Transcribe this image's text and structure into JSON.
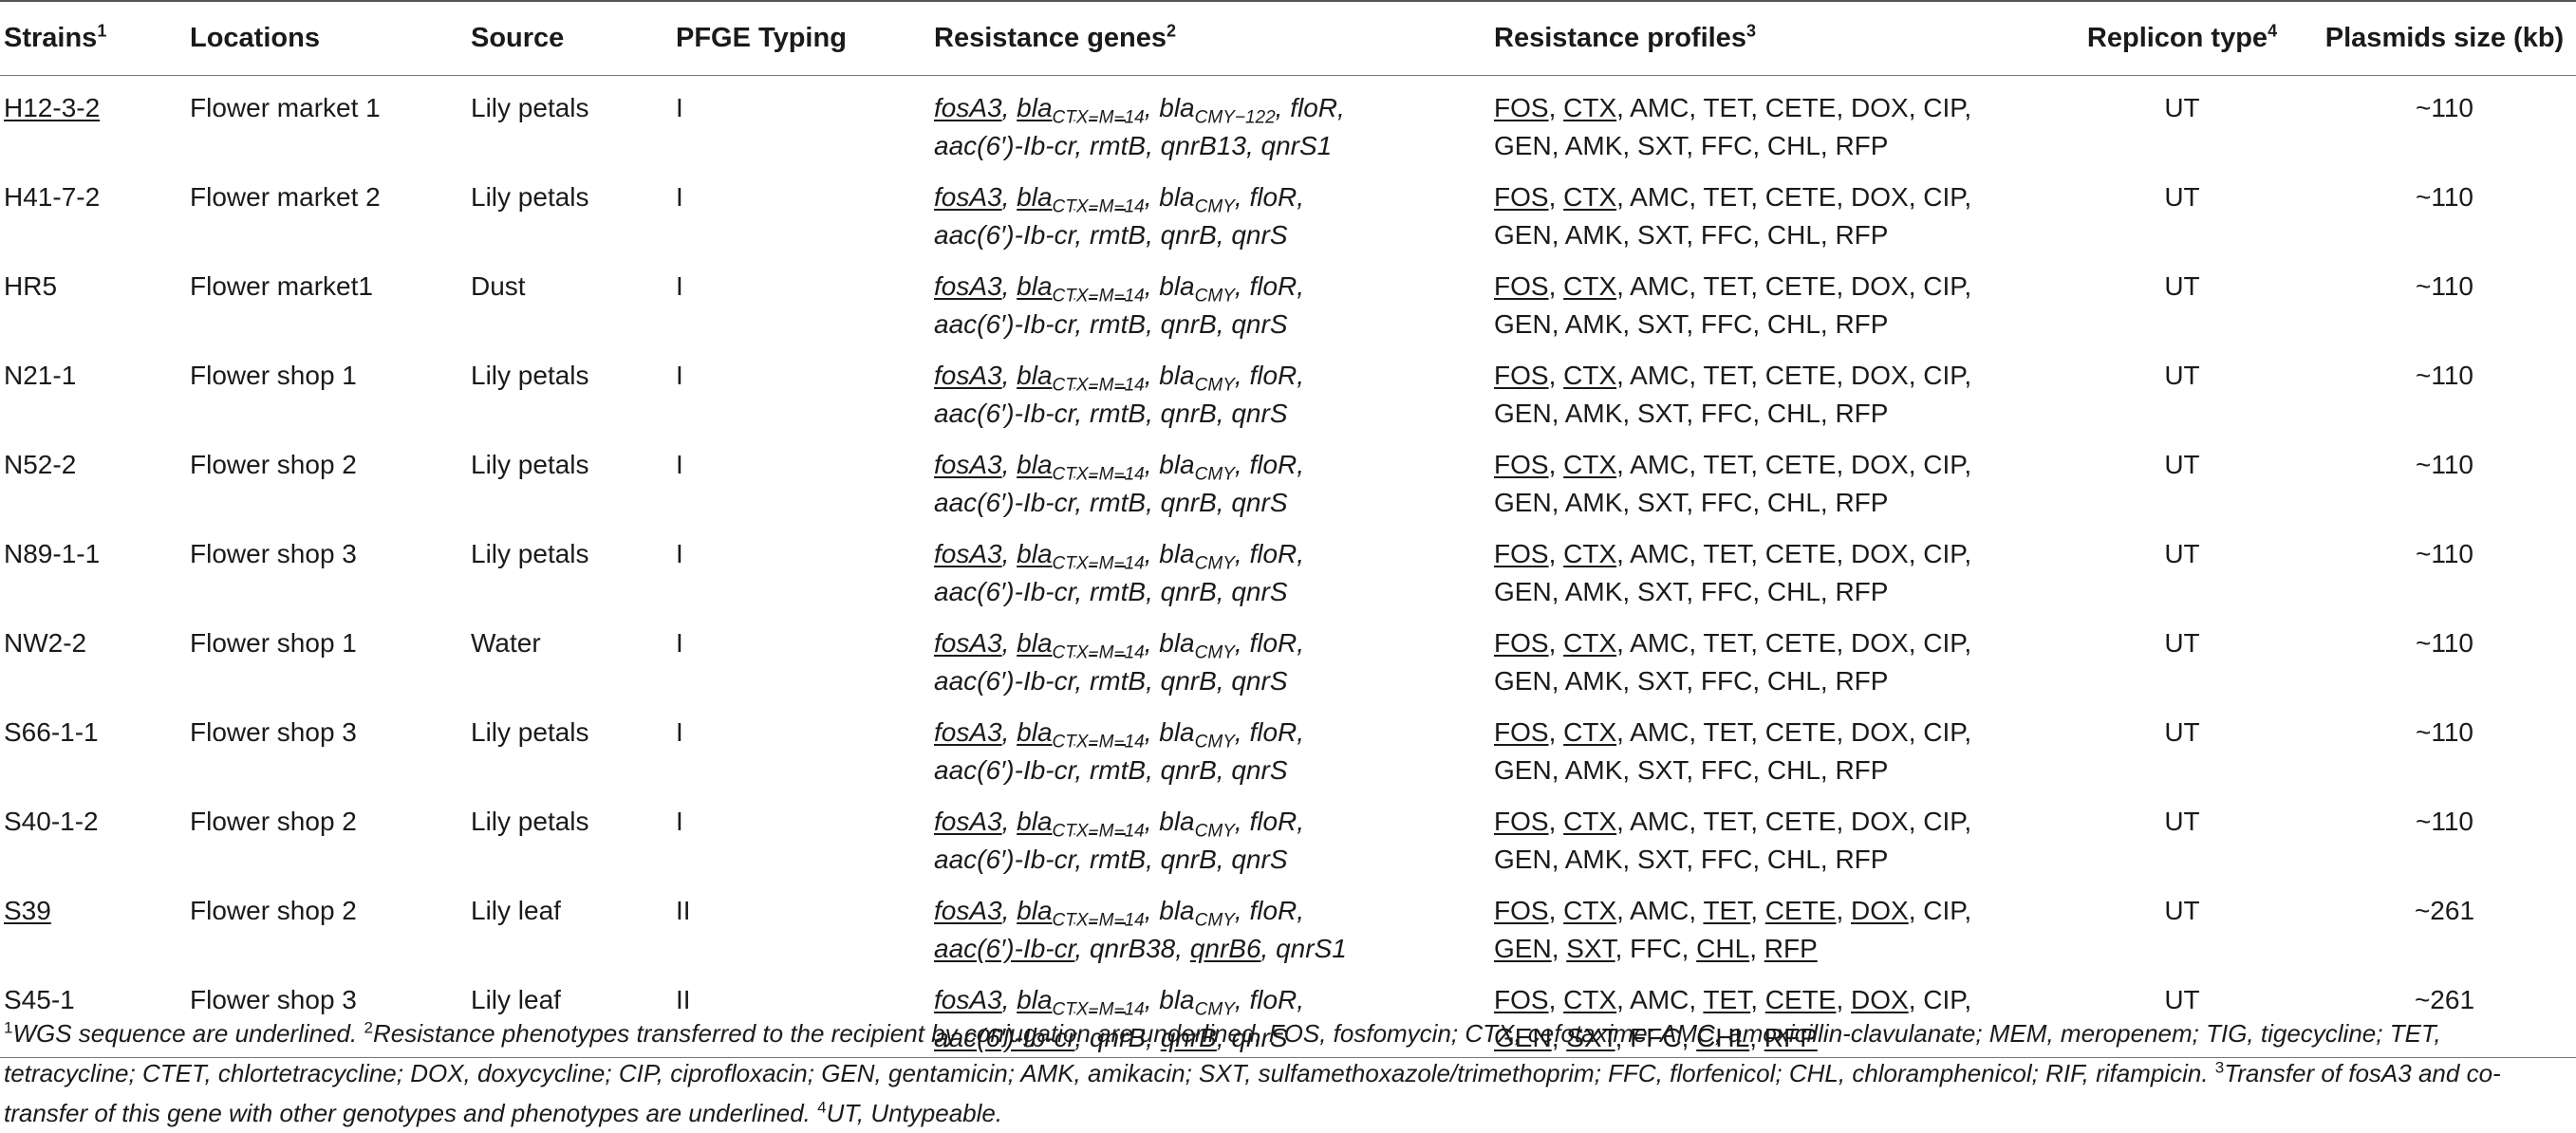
{
  "headers": [
    {
      "label": "Strains",
      "sup": "1"
    },
    {
      "label": "Locations",
      "sup": ""
    },
    {
      "label": "Source",
      "sup": ""
    },
    {
      "label": "PFGE Typing",
      "sup": ""
    },
    {
      "label": "Resistance genes",
      "sup": "2"
    },
    {
      "label": "Resistance profiles",
      "sup": "3"
    },
    {
      "label": "Replicon type",
      "sup": "4"
    },
    {
      "label": "Plasmids size (kb)",
      "sup": ""
    }
  ],
  "rows": [
    {
      "strain": "H12-3-2",
      "strain_u": true,
      "location": "Flower market 1",
      "source": "Lily petals",
      "pfge": "I",
      "genes": [
        [
          [
            "fosA3",
            1,
            ""
          ]
        ],
        [
          [
            "bla",
            1,
            "CTX−M−14"
          ]
        ],
        [
          [
            "bla",
            0,
            "CMY−122"
          ]
        ],
        [
          [
            "floR",
            0,
            ""
          ]
        ],
        [
          [
            "aac(6′)-Ib-cr",
            0,
            ""
          ]
        ],
        [
          [
            "rmtB",
            0,
            ""
          ]
        ],
        [
          [
            "qnrB13",
            0,
            ""
          ]
        ],
        [
          [
            "qnrS1",
            0,
            ""
          ]
        ]
      ],
      "profile": [
        [
          "FOS",
          1
        ],
        [
          "CTX",
          1
        ],
        [
          "AMC",
          0
        ],
        [
          "TET",
          0
        ],
        [
          "CETE",
          0
        ],
        [
          "DOX",
          0
        ],
        [
          "CIP",
          0
        ],
        [
          "GEN",
          0
        ],
        [
          "AMK",
          0
        ],
        [
          "SXT",
          0
        ],
        [
          "FFC",
          0
        ],
        [
          "CHL",
          0
        ],
        [
          "RFP",
          0
        ]
      ],
      "replicon": "UT",
      "size": "~110"
    },
    {
      "strain": "H41-7-2",
      "strain_u": false,
      "location": "Flower market 2",
      "source": "Lily petals",
      "pfge": "I",
      "genes": [
        [
          [
            "fosA3",
            1,
            ""
          ]
        ],
        [
          [
            "bla",
            1,
            "CTX−M−14"
          ]
        ],
        [
          [
            "bla",
            0,
            "CMY"
          ]
        ],
        [
          [
            "floR",
            0,
            ""
          ]
        ],
        [
          [
            "aac(6′)-Ib-cr",
            0,
            ""
          ]
        ],
        [
          [
            "rmtB",
            0,
            ""
          ]
        ],
        [
          [
            "qnrB",
            0,
            ""
          ]
        ],
        [
          [
            "qnrS",
            0,
            ""
          ]
        ]
      ],
      "profile": [
        [
          "FOS",
          1
        ],
        [
          "CTX",
          1
        ],
        [
          "AMC",
          0
        ],
        [
          "TET",
          0
        ],
        [
          "CETE",
          0
        ],
        [
          "DOX",
          0
        ],
        [
          "CIP",
          0
        ],
        [
          "GEN",
          0
        ],
        [
          "AMK",
          0
        ],
        [
          "SXT",
          0
        ],
        [
          "FFC",
          0
        ],
        [
          "CHL",
          0
        ],
        [
          "RFP",
          0
        ]
      ],
      "replicon": "UT",
      "size": "~110"
    },
    {
      "strain": "HR5",
      "strain_u": false,
      "location": "Flower market1",
      "source": "Dust",
      "pfge": "I",
      "genes": [
        [
          [
            "fosA3",
            1,
            ""
          ]
        ],
        [
          [
            "bla",
            1,
            "CTX−M−14"
          ]
        ],
        [
          [
            "bla",
            0,
            "CMY"
          ]
        ],
        [
          [
            "floR",
            0,
            ""
          ]
        ],
        [
          [
            "aac(6′)-Ib-cr",
            0,
            ""
          ]
        ],
        [
          [
            "rmtB",
            0,
            ""
          ]
        ],
        [
          [
            "qnrB",
            0,
            ""
          ]
        ],
        [
          [
            "qnrS",
            0,
            ""
          ]
        ]
      ],
      "profile": [
        [
          "FOS",
          1
        ],
        [
          "CTX",
          1
        ],
        [
          "AMC",
          0
        ],
        [
          "TET",
          0
        ],
        [
          "CETE",
          0
        ],
        [
          "DOX",
          0
        ],
        [
          "CIP",
          0
        ],
        [
          "GEN",
          0
        ],
        [
          "AMK",
          0
        ],
        [
          "SXT",
          0
        ],
        [
          "FFC",
          0
        ],
        [
          "CHL",
          0
        ],
        [
          "RFP",
          0
        ]
      ],
      "replicon": "UT",
      "size": "~110"
    },
    {
      "strain": "N21-1",
      "strain_u": false,
      "location": "Flower shop 1",
      "source": "Lily petals",
      "pfge": "I",
      "genes": [
        [
          [
            "fosA3",
            1,
            ""
          ]
        ],
        [
          [
            "bla",
            1,
            "CTX−M−14"
          ]
        ],
        [
          [
            "bla",
            0,
            "CMY"
          ]
        ],
        [
          [
            "floR",
            0,
            ""
          ]
        ],
        [
          [
            "aac(6′)-Ib-cr",
            0,
            ""
          ]
        ],
        [
          [
            "rmtB",
            0,
            ""
          ]
        ],
        [
          [
            "qnrB",
            0,
            ""
          ]
        ],
        [
          [
            "qnrS",
            0,
            ""
          ]
        ]
      ],
      "profile": [
        [
          "FOS",
          1
        ],
        [
          "CTX",
          1
        ],
        [
          "AMC",
          0
        ],
        [
          "TET",
          0
        ],
        [
          "CETE",
          0
        ],
        [
          "DOX",
          0
        ],
        [
          "CIP",
          0
        ],
        [
          "GEN",
          0
        ],
        [
          "AMK",
          0
        ],
        [
          "SXT",
          0
        ],
        [
          "FFC",
          0
        ],
        [
          "CHL",
          0
        ],
        [
          "RFP",
          0
        ]
      ],
      "replicon": "UT",
      "size": "~110"
    },
    {
      "strain": "N52-2",
      "strain_u": false,
      "location": "Flower shop 2",
      "source": "Lily petals",
      "pfge": "I",
      "genes": [
        [
          [
            "fosA3",
            1,
            ""
          ]
        ],
        [
          [
            "bla",
            1,
            "CTX−M−14"
          ]
        ],
        [
          [
            "bla",
            0,
            "CMY"
          ]
        ],
        [
          [
            "floR",
            0,
            ""
          ]
        ],
        [
          [
            "aac(6′)-Ib-cr",
            0,
            ""
          ]
        ],
        [
          [
            "rmtB",
            0,
            ""
          ]
        ],
        [
          [
            "qnrB",
            0,
            ""
          ]
        ],
        [
          [
            "qnrS",
            0,
            ""
          ]
        ]
      ],
      "profile": [
        [
          "FOS",
          1
        ],
        [
          "CTX",
          1
        ],
        [
          "AMC",
          0
        ],
        [
          "TET",
          0
        ],
        [
          "CETE",
          0
        ],
        [
          "DOX",
          0
        ],
        [
          "CIP",
          0
        ],
        [
          "GEN",
          0
        ],
        [
          "AMK",
          0
        ],
        [
          "SXT",
          0
        ],
        [
          "FFC",
          0
        ],
        [
          "CHL",
          0
        ],
        [
          "RFP",
          0
        ]
      ],
      "replicon": "UT",
      "size": "~110"
    },
    {
      "strain": "N89-1-1",
      "strain_u": false,
      "location": "Flower shop 3",
      "source": "Lily petals",
      "pfge": "I",
      "genes": [
        [
          [
            "fosA3",
            1,
            ""
          ]
        ],
        [
          [
            "bla",
            1,
            "CTX−M−14"
          ]
        ],
        [
          [
            "bla",
            0,
            "CMY"
          ]
        ],
        [
          [
            "floR",
            0,
            ""
          ]
        ],
        [
          [
            "aac(6′)-Ib-cr",
            0,
            ""
          ]
        ],
        [
          [
            "rmtB",
            0,
            ""
          ]
        ],
        [
          [
            "qnrB",
            0,
            ""
          ]
        ],
        [
          [
            "qnrS",
            0,
            ""
          ]
        ]
      ],
      "profile": [
        [
          "FOS",
          1
        ],
        [
          "CTX",
          1
        ],
        [
          "AMC",
          0
        ],
        [
          "TET",
          0
        ],
        [
          "CETE",
          0
        ],
        [
          "DOX",
          0
        ],
        [
          "CIP",
          0
        ],
        [
          "GEN",
          0
        ],
        [
          "AMK",
          0
        ],
        [
          "SXT",
          0
        ],
        [
          "FFC",
          0
        ],
        [
          "CHL",
          0
        ],
        [
          "RFP",
          0
        ]
      ],
      "replicon": "UT",
      "size": "~110"
    },
    {
      "strain": "NW2-2",
      "strain_u": false,
      "location": "Flower shop 1",
      "source": "Water",
      "pfge": "I",
      "genes": [
        [
          [
            "fosA3",
            1,
            ""
          ]
        ],
        [
          [
            "bla",
            1,
            "CTX−M−14"
          ]
        ],
        [
          [
            "bla",
            0,
            "CMY"
          ]
        ],
        [
          [
            "floR",
            0,
            ""
          ]
        ],
        [
          [
            "aac(6′)-Ib-cr",
            0,
            ""
          ]
        ],
        [
          [
            "rmtB",
            0,
            ""
          ]
        ],
        [
          [
            "qnrB",
            0,
            ""
          ]
        ],
        [
          [
            "qnrS",
            0,
            ""
          ]
        ]
      ],
      "profile": [
        [
          "FOS",
          1
        ],
        [
          "CTX",
          1
        ],
        [
          "AMC",
          0
        ],
        [
          "TET",
          0
        ],
        [
          "CETE",
          0
        ],
        [
          "DOX",
          0
        ],
        [
          "CIP",
          0
        ],
        [
          "GEN",
          0
        ],
        [
          "AMK",
          0
        ],
        [
          "SXT",
          0
        ],
        [
          "FFC",
          0
        ],
        [
          "CHL",
          0
        ],
        [
          "RFP",
          0
        ]
      ],
      "replicon": "UT",
      "size": "~110"
    },
    {
      "strain": "S66-1-1",
      "strain_u": false,
      "location": "Flower shop 3",
      "source": "Lily petals",
      "pfge": "I",
      "genes": [
        [
          [
            "fosA3",
            1,
            ""
          ]
        ],
        [
          [
            "bla",
            1,
            "CTX−M−14"
          ]
        ],
        [
          [
            "bla",
            0,
            "CMY"
          ]
        ],
        [
          [
            "floR",
            0,
            ""
          ]
        ],
        [
          [
            "aac(6′)-Ib-cr",
            0,
            ""
          ]
        ],
        [
          [
            "rmtB",
            0,
            ""
          ]
        ],
        [
          [
            "qnrB",
            0,
            ""
          ]
        ],
        [
          [
            "qnrS",
            0,
            ""
          ]
        ]
      ],
      "profile": [
        [
          "FOS",
          1
        ],
        [
          "CTX",
          1
        ],
        [
          "AMC",
          0
        ],
        [
          "TET",
          0
        ],
        [
          "CETE",
          0
        ],
        [
          "DOX",
          0
        ],
        [
          "CIP",
          0
        ],
        [
          "GEN",
          0
        ],
        [
          "AMK",
          0
        ],
        [
          "SXT",
          0
        ],
        [
          "FFC",
          0
        ],
        [
          "CHL",
          0
        ],
        [
          "RFP",
          0
        ]
      ],
      "replicon": "UT",
      "size": "~110"
    },
    {
      "strain": "S40-1-2",
      "strain_u": false,
      "location": "Flower shop 2",
      "source": "Lily petals",
      "pfge": "I",
      "genes": [
        [
          [
            "fosA3",
            1,
            ""
          ]
        ],
        [
          [
            "bla",
            1,
            "CTX−M−14"
          ]
        ],
        [
          [
            "bla",
            0,
            "CMY"
          ]
        ],
        [
          [
            "floR",
            0,
            ""
          ]
        ],
        [
          [
            "aac(6′)-Ib-cr",
            0,
            ""
          ]
        ],
        [
          [
            "rmtB",
            0,
            ""
          ]
        ],
        [
          [
            "qnrB",
            0,
            ""
          ]
        ],
        [
          [
            "qnrS",
            0,
            ""
          ]
        ]
      ],
      "profile": [
        [
          "FOS",
          1
        ],
        [
          "CTX",
          1
        ],
        [
          "AMC",
          0
        ],
        [
          "TET",
          0
        ],
        [
          "CETE",
          0
        ],
        [
          "DOX",
          0
        ],
        [
          "CIP",
          0
        ],
        [
          "GEN",
          0
        ],
        [
          "AMK",
          0
        ],
        [
          "SXT",
          0
        ],
        [
          "FFC",
          0
        ],
        [
          "CHL",
          0
        ],
        [
          "RFP",
          0
        ]
      ],
      "replicon": "UT",
      "size": "~110"
    },
    {
      "strain": "S39",
      "strain_u": true,
      "location": "Flower shop 2",
      "source": "Lily leaf",
      "pfge": "II",
      "genes": [
        [
          [
            "fosA3",
            1,
            ""
          ]
        ],
        [
          [
            "bla",
            1,
            "CTX−M−14"
          ]
        ],
        [
          [
            "bla",
            0,
            "CMY"
          ]
        ],
        [
          [
            "floR",
            0,
            ""
          ]
        ],
        [
          [
            "aac(6′)-Ib-cr",
            1,
            ""
          ]
        ],
        [
          [
            "qnrB38",
            0,
            ""
          ]
        ],
        [
          [
            "qnrB6",
            1,
            ""
          ]
        ],
        [
          [
            "qnrS1",
            0,
            ""
          ]
        ]
      ],
      "profile": [
        [
          "FOS",
          1
        ],
        [
          "CTX",
          1
        ],
        [
          "AMC",
          0
        ],
        [
          "TET",
          1
        ],
        [
          "CETE",
          1
        ],
        [
          "DOX",
          1
        ],
        [
          "CIP",
          0
        ],
        [
          "GEN",
          1
        ],
        [
          "SXT",
          1
        ],
        [
          "FFC",
          0
        ],
        [
          "CHL",
          1
        ],
        [
          "RFP",
          1
        ]
      ],
      "replicon": "UT",
      "size": "~261"
    },
    {
      "strain": "S45-1",
      "strain_u": false,
      "location": "Flower shop 3",
      "source": "Lily leaf",
      "pfge": "II",
      "genes": [
        [
          [
            "fosA3",
            1,
            ""
          ]
        ],
        [
          [
            "bla",
            1,
            "CTX−M−14"
          ]
        ],
        [
          [
            "bla",
            0,
            "CMY"
          ]
        ],
        [
          [
            "floR",
            0,
            ""
          ]
        ],
        [
          [
            "aac(6′)-Ib-cr",
            1,
            ""
          ]
        ],
        [
          [
            "qnrB",
            0,
            ""
          ]
        ],
        [
          [
            "qnrB",
            1,
            ""
          ]
        ],
        [
          [
            "qnrS",
            0,
            ""
          ]
        ]
      ],
      "profile": [
        [
          "FOS",
          1
        ],
        [
          "CTX",
          1
        ],
        [
          "AMC",
          0
        ],
        [
          "TET",
          1
        ],
        [
          "CETE",
          1
        ],
        [
          "DOX",
          1
        ],
        [
          "CIP",
          0
        ],
        [
          "GEN",
          1
        ],
        [
          "SXT",
          1
        ],
        [
          "FFC",
          0
        ],
        [
          "CHL",
          1
        ],
        [
          "RFP",
          1
        ]
      ],
      "replicon": "UT",
      "size": "~261"
    }
  ],
  "footnote": {
    "n1": "1",
    "t1": "WGS sequence are underlined.",
    "n2": "2",
    "t2": "Resistance phenotypes transferred to the recipient by conjugation are underlined. FOS, fosfomycin; CTX, cefotaxime; AMC, amoxicillin-clavulanate; MEM, meropenem; TIG, tigecycline; TET, tetracycline; CTET, chlortetracycline; DOX, doxycycline; CIP, ciprofloxacin; GEN, gentamicin; AMK, amikacin; SXT, sulfamethoxazole/trimethoprim; FFC, florfenicol; CHL, chloramphenicol; RIF, rifampicin.",
    "n3": "3",
    "t3": "Transfer of fosA3 and co-transfer of this gene with other genotypes and phenotypes are underlined.",
    "n4": "4",
    "t4": "UT, Untypeable."
  }
}
